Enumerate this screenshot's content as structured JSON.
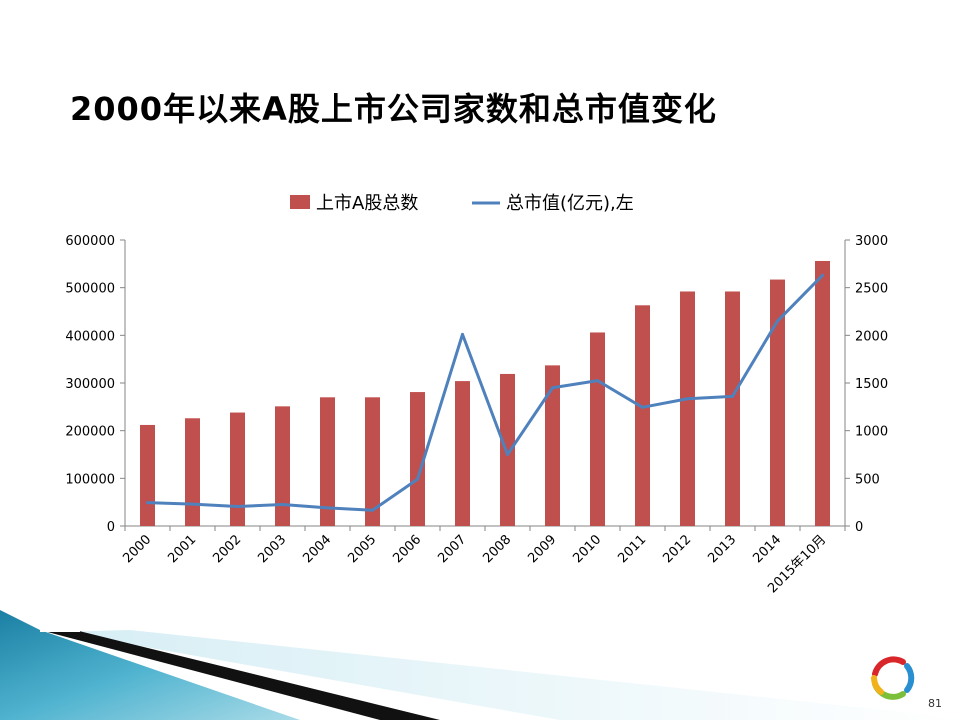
{
  "slide": {
    "title": "2000年以来A股上市公司家数和总市值变化",
    "page_number": "81"
  },
  "colors": {
    "bar": "#C0504D",
    "line": "#4F81BD",
    "axis": "#868686"
  },
  "chart_data": {
    "type": "bar",
    "categories": [
      "2000",
      "2001",
      "2002",
      "2003",
      "2004",
      "2005",
      "2006",
      "2007",
      "2008",
      "2009",
      "2010",
      "2011",
      "2012",
      "2013",
      "2014",
      "2015年10月"
    ],
    "series": [
      {
        "name": "上市A股总数",
        "type": "bar",
        "axis": "left",
        "values": [
          212000,
          226000,
          238000,
          251000,
          270000,
          270000,
          281000,
          304000,
          319000,
          337000,
          406000,
          463000,
          492000,
          492000,
          517000,
          556000
        ]
      },
      {
        "name": "总市值(亿元),左",
        "type": "line",
        "axis": "right",
        "values": [
          245,
          230,
          205,
          225,
          190,
          165,
          490,
          2010,
          750,
          1450,
          1525,
          1245,
          1335,
          1360,
          2150,
          2630
        ]
      }
    ],
    "y_left": {
      "min": 0,
      "max": 600000,
      "ticks": [
        0,
        100000,
        200000,
        300000,
        400000,
        500000,
        600000
      ]
    },
    "y_right": {
      "min": 0,
      "max": 3000,
      "ticks": [
        0,
        500,
        1000,
        1500,
        2000,
        2500,
        3000
      ]
    },
    "legend_position": "top-center",
    "grid": false
  }
}
